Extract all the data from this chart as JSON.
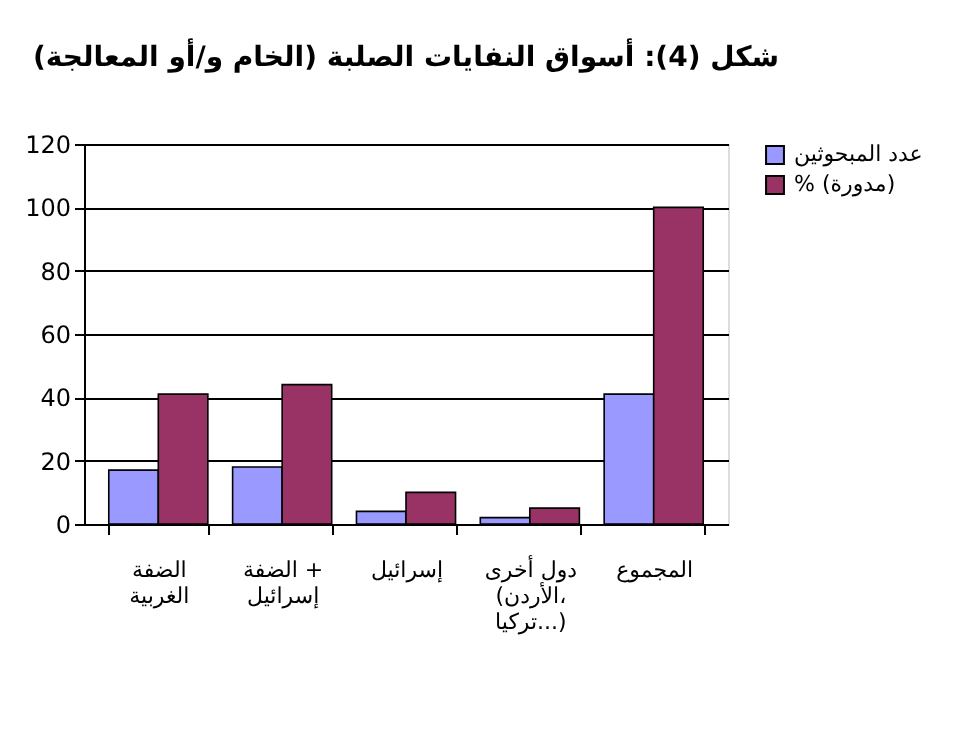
{
  "chart_data": {
    "type": "bar",
    "title": "شكل (4): أسواق النفايات الصلبة (الخام و/أو المعالجة)",
    "categories": [
      "الضفة الغربية",
      "الضفة + إسرائيل",
      "إسرائيل",
      "دول أخرى (الأردن، تركيا...)",
      "المجموع"
    ],
    "series": [
      {
        "name": "عدد المبحوثين",
        "color": "#9999ff",
        "values": [
          17,
          18,
          4,
          2,
          41
        ]
      },
      {
        "name": "% (مدورة)",
        "color": "#993366",
        "values": [
          41,
          44,
          10,
          5,
          100
        ]
      }
    ],
    "ylim": [
      0,
      120
    ],
    "yticks": [
      0,
      20,
      40,
      60,
      80,
      100,
      120
    ],
    "grid": "y",
    "legend": "right"
  }
}
